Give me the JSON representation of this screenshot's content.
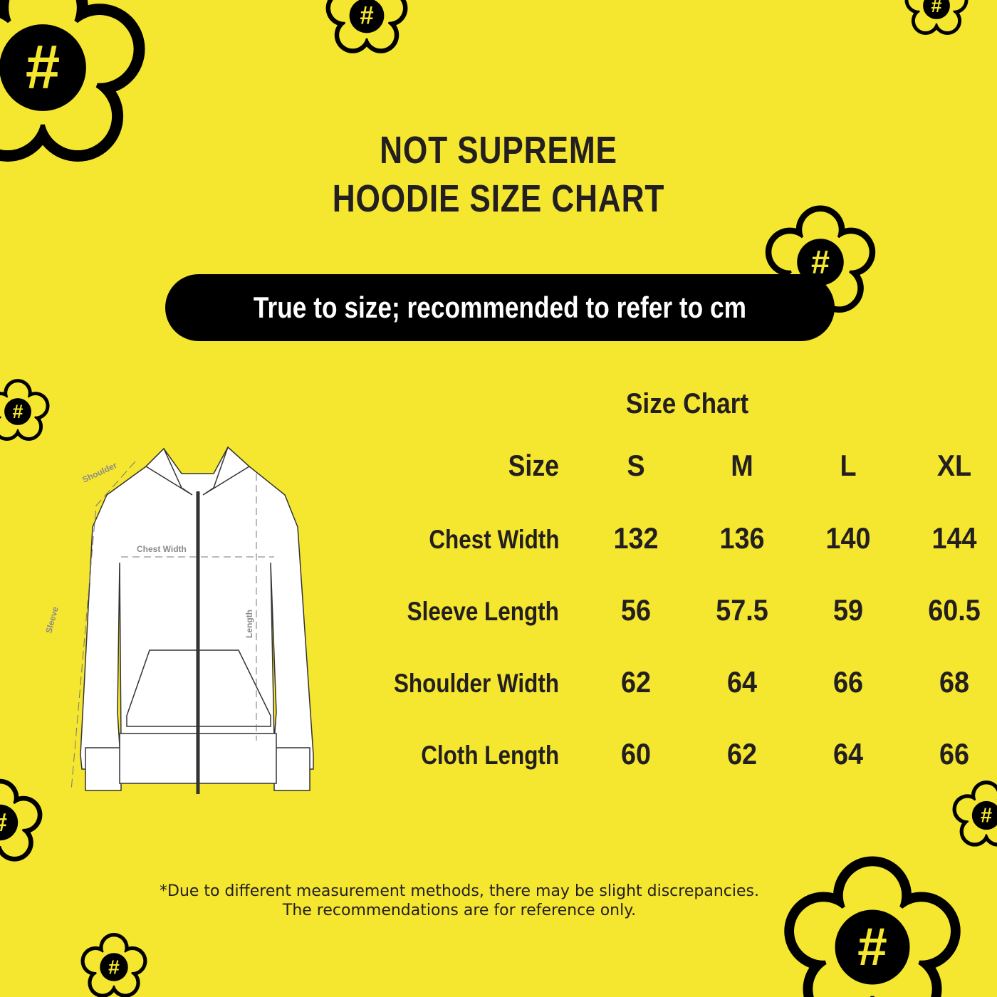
{
  "title": {
    "line1": "NOT SUPREME",
    "line2": "HOODIE SIZE CHART"
  },
  "banner": "True to size; recommended to refer to cm",
  "diagram": {
    "shoulder": "Shoulder",
    "chest": "Chest Width",
    "sleeve": "Sleeve",
    "length": "Length"
  },
  "table": {
    "title": "Size Chart",
    "header": [
      "Size",
      "S",
      "M",
      "L",
      "XL"
    ],
    "rows": [
      {
        "label": "Chest Width",
        "values": [
          "132",
          "136",
          "140",
          "144"
        ]
      },
      {
        "label": "Sleeve Length",
        "values": [
          "56",
          "57.5",
          "59",
          "60.5"
        ]
      },
      {
        "label": "Shoulder Width",
        "values": [
          "62",
          "64",
          "66",
          "68"
        ]
      },
      {
        "label": "Cloth Length",
        "values": [
          "60",
          "62",
          "64",
          "66"
        ]
      }
    ]
  },
  "note": {
    "line1": "*Due to different measurement methods, there may be slight discrepancies.",
    "line2": "The recommendations are for reference only."
  },
  "colors": {
    "background": "#f5e62f",
    "ink": "#231f20"
  },
  "decor": {
    "icon": "flower-hash-icon",
    "hash": "#"
  }
}
